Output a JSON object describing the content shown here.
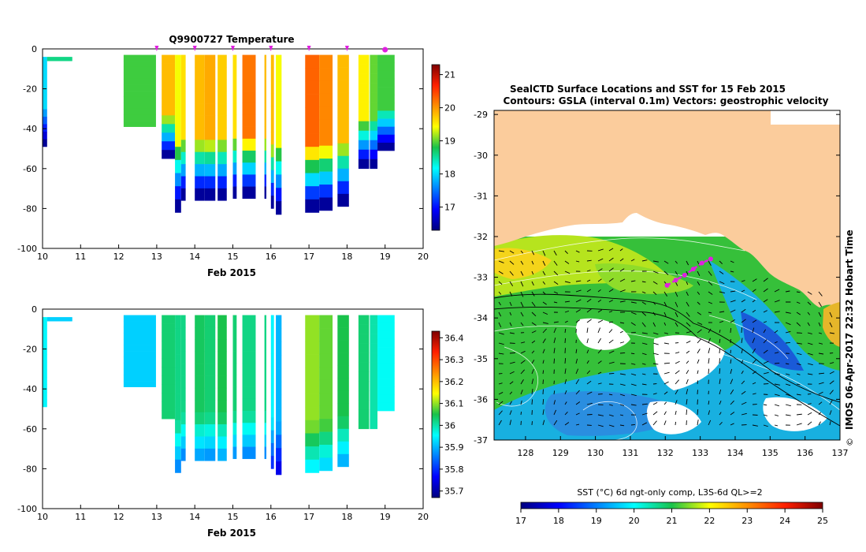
{
  "charts": {
    "temperature": {
      "type": "heatmap",
      "title": "Q9900727  Temperature",
      "xlabel": "Feb 2015",
      "x_ticks": [
        "10",
        "11",
        "12",
        "13",
        "14",
        "15",
        "16",
        "17",
        "18",
        "19",
        "20"
      ],
      "y_ticks": [
        "0",
        "-20",
        "-40",
        "-60",
        "-80",
        "-100"
      ],
      "xlim": [
        10,
        20
      ],
      "ylim": [
        -100,
        0
      ],
      "colorbar_ticks": [
        "21",
        "20",
        "19",
        "18",
        "17"
      ],
      "colorbar_range": [
        16.3,
        21.3
      ],
      "surface_markers_x": [
        13.0,
        14.0,
        15.0,
        16.0,
        17.0,
        18.0
      ],
      "current_marker_x": 19.0,
      "profiles": [
        {
          "x0": 10.0,
          "x1": 10.12,
          "top": -4,
          "depth": 49,
          "v": 18.0
        },
        {
          "x0": 10.12,
          "x1": 10.78,
          "top": -4,
          "depth": 6,
          "v": 18.6
        },
        {
          "x0": 12.13,
          "x1": 12.98,
          "top": -3,
          "depth": 39,
          "v": 18.9
        },
        {
          "x0": 13.13,
          "x1": 13.48,
          "top": -3,
          "depth": 55,
          "v": 19.8
        },
        {
          "x0": 13.48,
          "x1": 13.64,
          "top": -3,
          "depth": 82,
          "v": 19.4
        },
        {
          "x0": 13.64,
          "x1": 13.76,
          "top": -3,
          "depth": 76,
          "v": 19.6
        },
        {
          "x0": 14.0,
          "x1": 14.26,
          "top": -3,
          "depth": 76,
          "v": 19.8
        },
        {
          "x0": 14.26,
          "x1": 14.54,
          "top": -3,
          "depth": 76,
          "v": 19.9
        },
        {
          "x0": 14.6,
          "x1": 14.84,
          "top": -3,
          "depth": 76,
          "v": 19.7
        },
        {
          "x0": 15.0,
          "x1": 15.1,
          "top": -3,
          "depth": 75,
          "v": 19.6
        },
        {
          "x0": 15.25,
          "x1": 15.6,
          "top": -3,
          "depth": 75,
          "v": 20.2
        },
        {
          "x0": 15.83,
          "x1": 15.88,
          "top": -3,
          "depth": 75,
          "v": 19.8
        },
        {
          "x0": 16.0,
          "x1": 16.08,
          "top": -3,
          "depth": 80,
          "v": 19.8
        },
        {
          "x0": 16.13,
          "x1": 16.28,
          "top": -3,
          "depth": 83,
          "v": 19.4
        },
        {
          "x0": 16.9,
          "x1": 17.27,
          "top": -3,
          "depth": 82,
          "v": 20.3
        },
        {
          "x0": 17.27,
          "x1": 17.62,
          "top": -3,
          "depth": 81,
          "v": 20.1
        },
        {
          "x0": 17.75,
          "x1": 18.05,
          "top": -3,
          "depth": 79,
          "v": 19.8
        },
        {
          "x0": 18.3,
          "x1": 18.58,
          "top": -3,
          "depth": 60,
          "v": 19.5
        },
        {
          "x0": 18.6,
          "x1": 18.8,
          "top": -3,
          "depth": 60,
          "v": 19.0
        },
        {
          "x0": 18.8,
          "x1": 19.25,
          "top": -3,
          "depth": 51,
          "v": 18.9
        }
      ]
    },
    "salinity": {
      "type": "heatmap",
      "title": "",
      "xlabel": "Feb 2015",
      "x_ticks": [
        "10",
        "11",
        "12",
        "13",
        "14",
        "15",
        "16",
        "17",
        "18",
        "19",
        "20"
      ],
      "y_ticks": [
        "0",
        "-20",
        "-40",
        "-60",
        "-80",
        "-100"
      ],
      "xlim": [
        10,
        20
      ],
      "ylim": [
        -100,
        0
      ],
      "colorbar_ticks": [
        "36.4",
        "36.3",
        "36.2",
        "36.1",
        "36",
        "35.9",
        "35.8",
        "35.7"
      ],
      "colorbar_range": [
        35.67,
        36.43
      ],
      "profiles": [
        {
          "x0": 10.0,
          "x1": 10.12,
          "top": -4,
          "depth": 49,
          "v": 35.95
        },
        {
          "x0": 10.12,
          "x1": 10.78,
          "top": -4,
          "depth": 6,
          "v": 35.92
        },
        {
          "x0": 12.13,
          "x1": 12.98,
          "top": -3,
          "depth": 39,
          "v": 35.92
        },
        {
          "x0": 13.13,
          "x1": 13.48,
          "top": -3,
          "depth": 55,
          "v": 36.03
        },
        {
          "x0": 13.48,
          "x1": 13.64,
          "top": -3,
          "depth": 82,
          "v": 36.02
        },
        {
          "x0": 13.64,
          "x1": 13.76,
          "top": -3,
          "depth": 76,
          "v": 36.02
        },
        {
          "x0": 14.0,
          "x1": 14.26,
          "top": -3,
          "depth": 76,
          "v": 36.04
        },
        {
          "x0": 14.26,
          "x1": 14.54,
          "top": -3,
          "depth": 76,
          "v": 36.03
        },
        {
          "x0": 14.6,
          "x1": 14.84,
          "top": -3,
          "depth": 76,
          "v": 36.05
        },
        {
          "x0": 15.0,
          "x1": 15.1,
          "top": -3,
          "depth": 75,
          "v": 36.03
        },
        {
          "x0": 15.25,
          "x1": 15.6,
          "top": -3,
          "depth": 75,
          "v": 36.02
        },
        {
          "x0": 15.83,
          "x1": 15.88,
          "top": -3,
          "depth": 75,
          "v": 36.02
        },
        {
          "x0": 16.0,
          "x1": 16.08,
          "top": -3,
          "depth": 80,
          "v": 35.95
        },
        {
          "x0": 16.13,
          "x1": 16.28,
          "top": -3,
          "depth": 83,
          "v": 35.9
        },
        {
          "x0": 16.9,
          "x1": 17.27,
          "top": -3,
          "depth": 82,
          "v": 36.1
        },
        {
          "x0": 17.27,
          "x1": 17.62,
          "top": -3,
          "depth": 81,
          "v": 36.08
        },
        {
          "x0": 17.75,
          "x1": 18.05,
          "top": -3,
          "depth": 79,
          "v": 36.05
        },
        {
          "x0": 18.3,
          "x1": 18.58,
          "top": -3,
          "depth": 60,
          "v": 36.03
        },
        {
          "x0": 18.6,
          "x1": 18.8,
          "top": -3,
          "depth": 60,
          "v": 36.0
        },
        {
          "x0": 18.8,
          "x1": 19.25,
          "top": -3,
          "depth": 51,
          "v": 35.96
        }
      ]
    },
    "map": {
      "type": "heatmap",
      "title_line1": "SealCTD Surface Locations and SST for 15 Feb 2015",
      "title_line2": "Contours: GSLA (interval 0.1m) Vectors: geostrophic velocity",
      "x_ticks": [
        "128",
        "129",
        "130",
        "131",
        "132",
        "133",
        "134",
        "135",
        "136",
        "137"
      ],
      "y_ticks": [
        "-29",
        "-30",
        "-31",
        "-32",
        "-33",
        "-34",
        "-35",
        "-36",
        "-37"
      ],
      "xlim": [
        127.1,
        137.0
      ],
      "ylim": [
        -37.0,
        -28.9
      ],
      "colorbar_label": "SST (°C) 6d ngt-only comp, L3S-6d QL>=2",
      "colorbar_ticks": [
        "17",
        "18",
        "19",
        "20",
        "21",
        "22",
        "23",
        "24",
        "25"
      ],
      "colorbar_range": [
        17,
        25
      ],
      "track": [
        {
          "lon": 132.05,
          "lat": -33.2
        },
        {
          "lon": 132.3,
          "lat": -33.07
        },
        {
          "lon": 132.55,
          "lat": -32.95
        },
        {
          "lon": 132.8,
          "lat": -32.8
        },
        {
          "lon": 133.05,
          "lat": -32.65
        },
        {
          "lon": 133.3,
          "lat": -32.55
        }
      ]
    }
  },
  "stamp": "IMOS 06-Apr-2017 22:32 Hobart Time",
  "colors": {
    "marker": "#e020e0",
    "land": "#fbcc9c"
  }
}
